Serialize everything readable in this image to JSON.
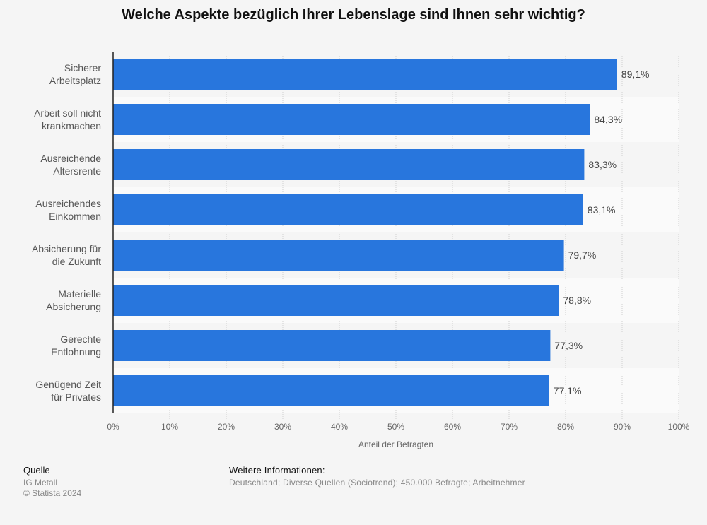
{
  "chart_data": {
    "type": "bar",
    "orientation": "horizontal",
    "title": "Welche Aspekte bezüglich Ihrer Lebenslage sind Ihnen sehr wichtig?",
    "xlabel": "Anteil der Befragten",
    "ylabel": "",
    "xlim": [
      0,
      100
    ],
    "grid": true,
    "categories": [
      [
        "Sicherer",
        "Arbeitsplatz"
      ],
      [
        "Arbeit soll nicht",
        "krankmachen"
      ],
      [
        "Ausreichende",
        "Altersrente"
      ],
      [
        "Ausreichendes",
        "Einkommen"
      ],
      [
        "Absicherung für",
        "die Zukunft"
      ],
      [
        "Materielle",
        "Absicherung"
      ],
      [
        "Gerechte",
        "Entlohnung"
      ],
      [
        "Genügend Zeit",
        "für Privates"
      ]
    ],
    "values": [
      89.1,
      84.3,
      83.3,
      83.1,
      79.7,
      78.8,
      77.3,
      77.1
    ],
    "value_labels": [
      "89,1%",
      "84,3%",
      "83,3%",
      "83,1%",
      "79,7%",
      "78,8%",
      "77,3%",
      "77,1%"
    ],
    "ticks": [
      0,
      10,
      20,
      30,
      40,
      50,
      60,
      70,
      80,
      90,
      100
    ],
    "tick_labels": [
      "0%",
      "10%",
      "20%",
      "30%",
      "40%",
      "50%",
      "60%",
      "70%",
      "80%",
      "90%",
      "100%"
    ],
    "bar_color": "#2876dd"
  },
  "footer": {
    "source_title": "Quelle",
    "source_lines": [
      "IG Metall",
      "© Statista 2024"
    ],
    "info_title": "Weitere Informationen:",
    "info_text": "Deutschland; Diverse Quellen (Sociotrend); 450.000 Befragte; Arbeitnehmer"
  }
}
